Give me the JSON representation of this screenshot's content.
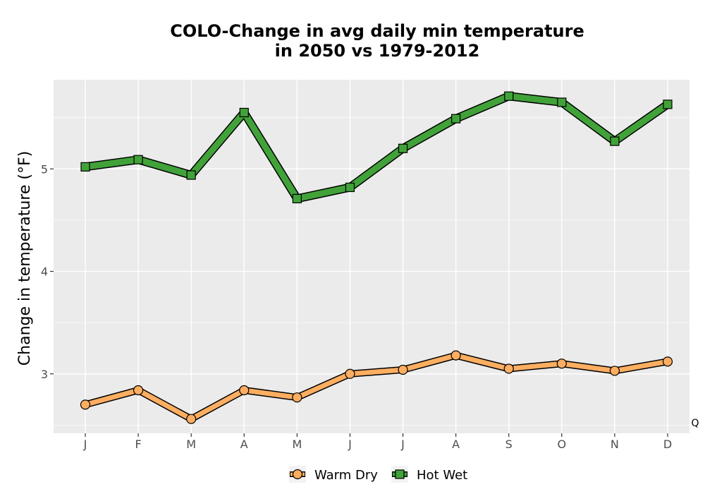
{
  "chart_data": {
    "type": "line",
    "title_line1": "COLO-Change in avg daily min temperature",
    "title_line2": "in 2050 vs 1979-2012",
    "xlabel": "",
    "ylabel": "Change in temperature (°F)",
    "categories": [
      "J",
      "F",
      "M",
      "A",
      "M",
      "J",
      "J",
      "A",
      "S",
      "O",
      "N",
      "D"
    ],
    "ylim": [
      2.42,
      5.87
    ],
    "yticks": [
      3,
      4,
      5
    ],
    "grid": true,
    "legend_position": "bottom",
    "corner_label": "Q",
    "series": [
      {
        "name": "Warm Dry",
        "marker": "circle",
        "color": "#fdae61",
        "values": [
          2.7,
          2.84,
          2.56,
          2.84,
          2.77,
          3.0,
          3.04,
          3.18,
          3.05,
          3.1,
          3.03,
          3.12
        ]
      },
      {
        "name": "Hot Wet",
        "marker": "square",
        "color": "#41a23a",
        "values": [
          5.02,
          5.09,
          4.94,
          5.55,
          4.71,
          4.82,
          5.2,
          5.49,
          5.71,
          5.65,
          5.27,
          5.63
        ]
      }
    ]
  }
}
